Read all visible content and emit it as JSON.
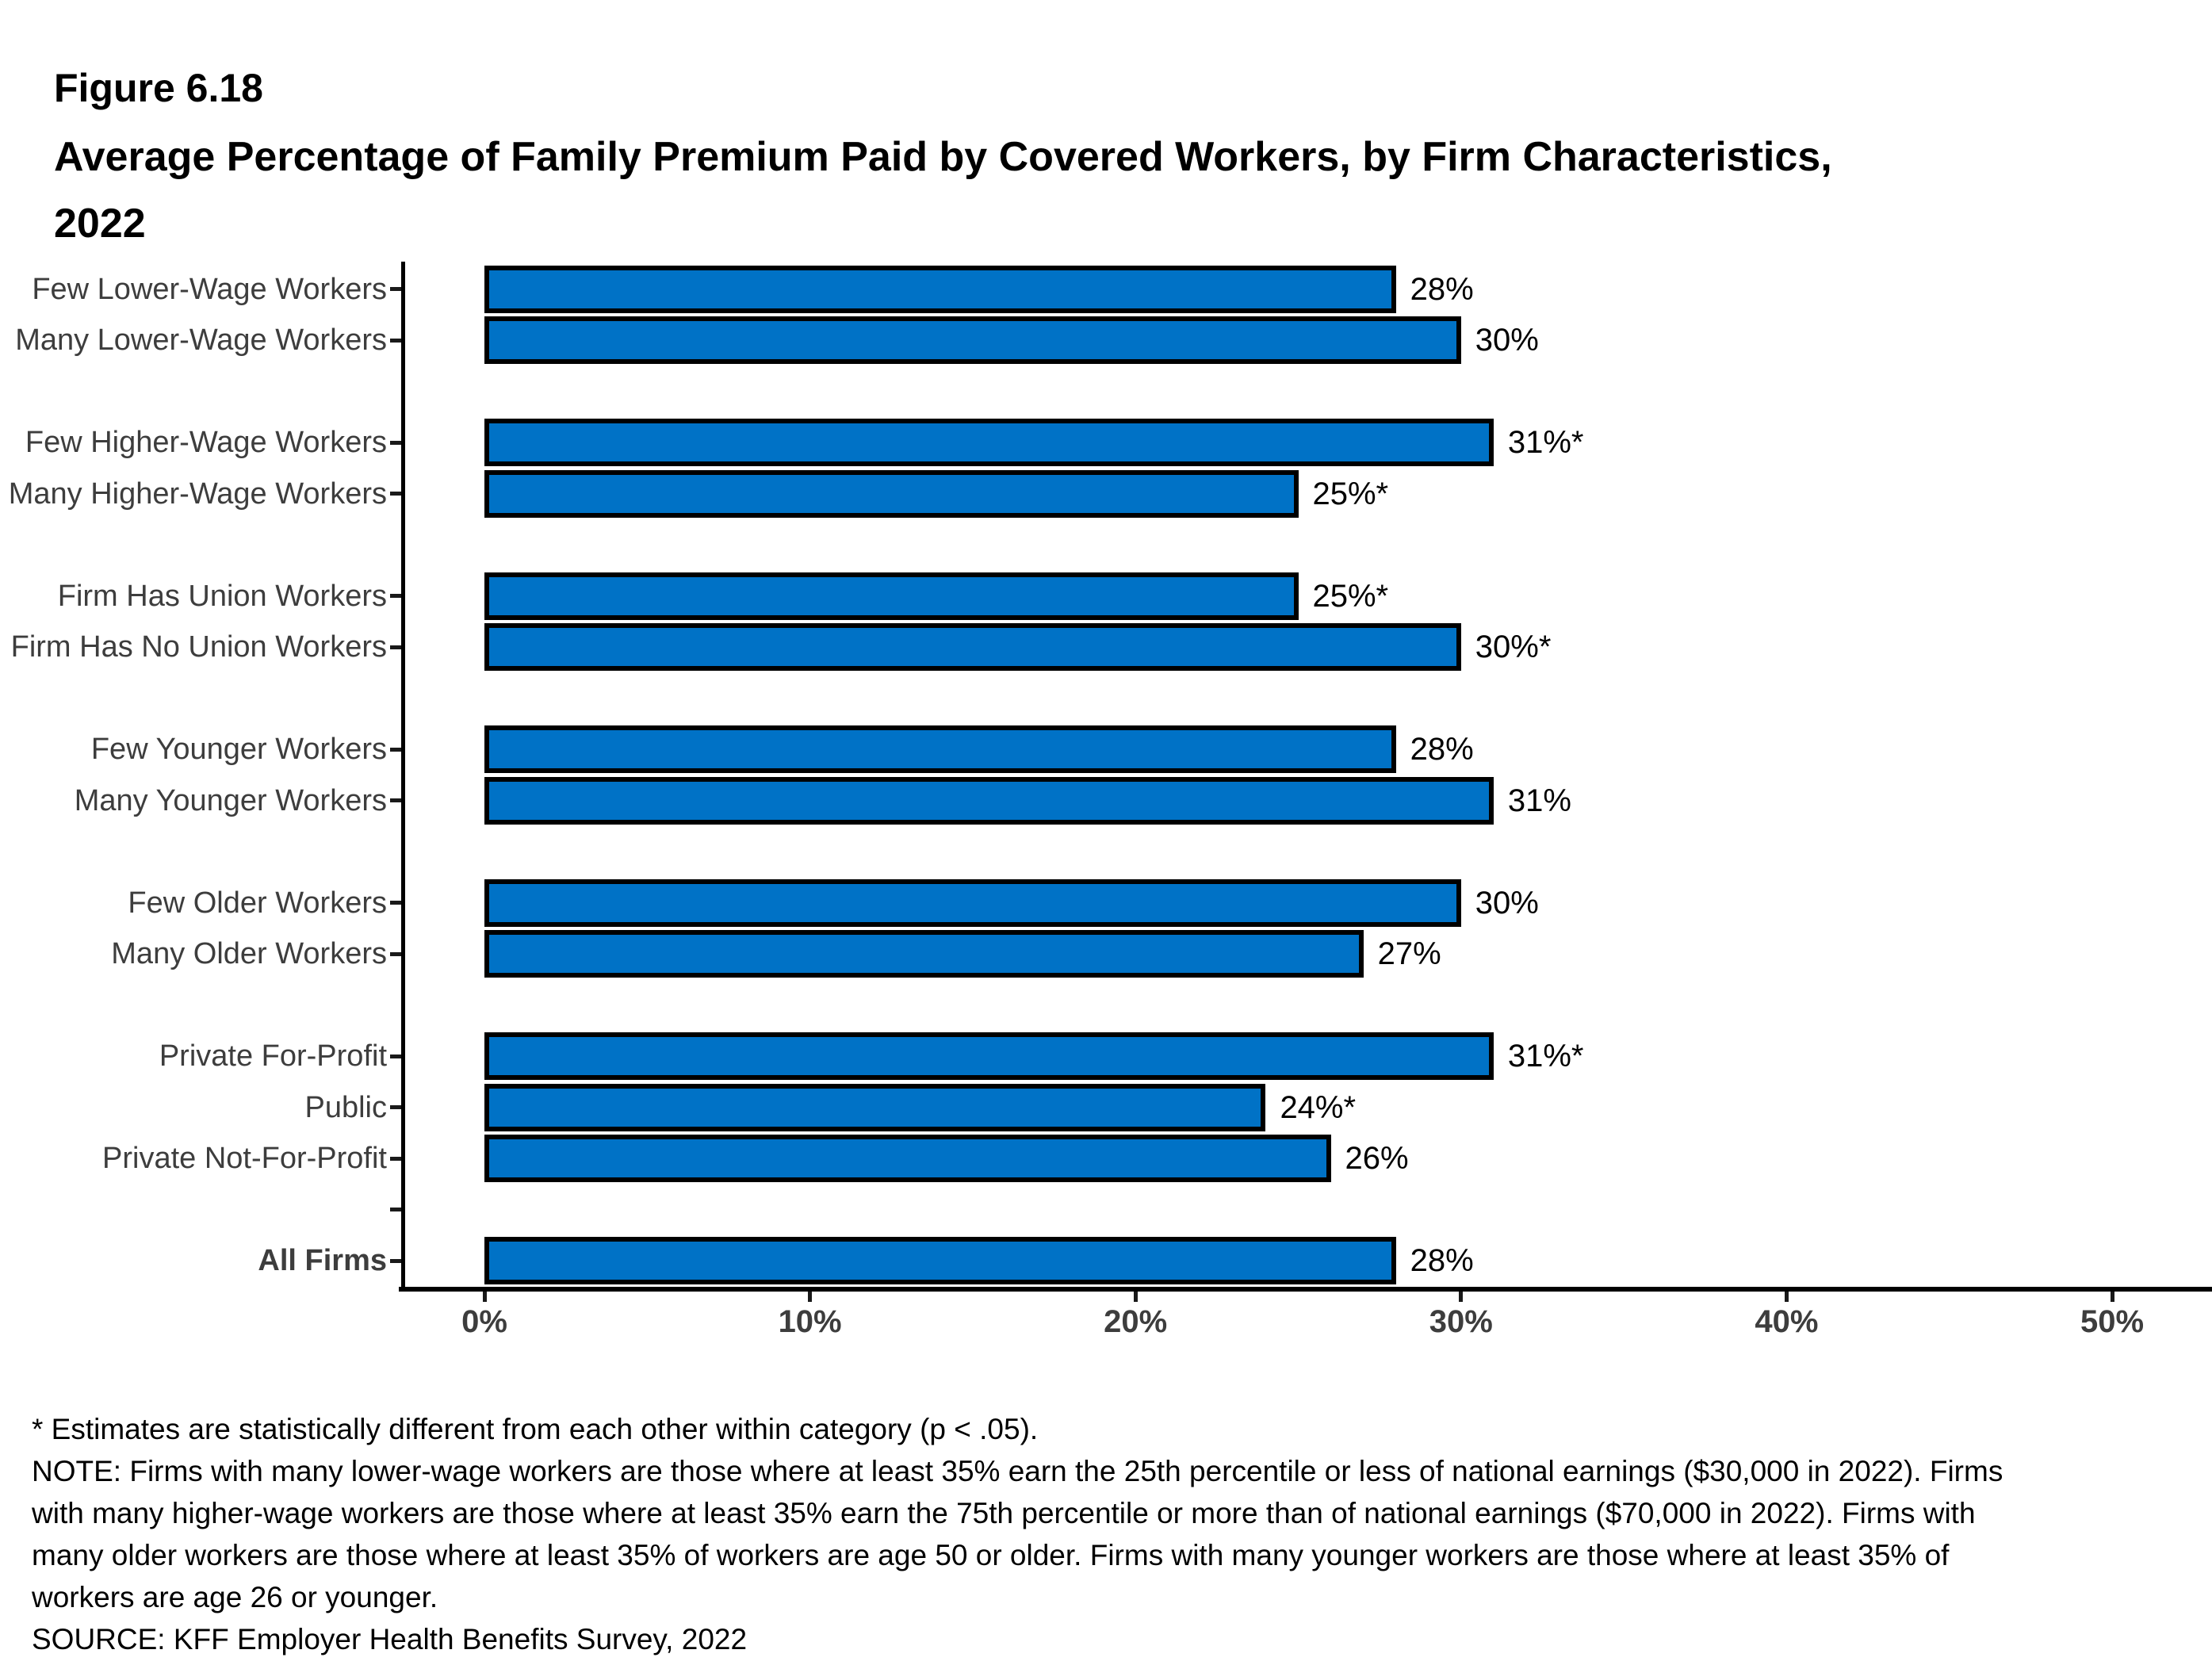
{
  "figure": {
    "label": "Figure 6.18",
    "title_line2": "Average Percentage of Family Premium Paid by Covered Workers, by Firm Characteristics,",
    "title_line3": "2022"
  },
  "chart_data": {
    "type": "bar",
    "orientation": "horizontal",
    "title": "Figure 6.18 — Average Percentage of Family Premium Paid by Covered Workers, by Firm Characteristics, 2022",
    "xlabel": "",
    "ylabel": "",
    "xlim": [
      0,
      50
    ],
    "x_tick_labels": [
      "0%",
      "10%",
      "20%",
      "30%",
      "40%",
      "50%"
    ],
    "x_tick_values": [
      0,
      10,
      20,
      30,
      40,
      50
    ],
    "grid": false,
    "legend": null,
    "bar_color": "#0072C6",
    "bar_border_color": "#000000",
    "rows": [
      {
        "label": "Few Lower-Wage Workers",
        "value": 28,
        "display": "28%",
        "slot": 1,
        "bold": false
      },
      {
        "label": "Many Lower-Wage Workers",
        "value": 30,
        "display": "30%",
        "slot": 2,
        "bold": false
      },
      {
        "label": "Few Higher-Wage Workers",
        "value": 31,
        "display": "31%*",
        "slot": 4,
        "bold": false
      },
      {
        "label": "Many Higher-Wage Workers",
        "value": 25,
        "display": "25%*",
        "slot": 5,
        "bold": false
      },
      {
        "label": "Firm Has Union Workers",
        "value": 25,
        "display": "25%*",
        "slot": 7,
        "bold": false
      },
      {
        "label": "Firm Has No Union Workers",
        "value": 30,
        "display": "30%*",
        "slot": 8,
        "bold": false
      },
      {
        "label": "Few Younger Workers",
        "value": 28,
        "display": "28%",
        "slot": 10,
        "bold": false
      },
      {
        "label": "Many Younger Workers",
        "value": 31,
        "display": "31%",
        "slot": 11,
        "bold": false
      },
      {
        "label": "Few Older Workers",
        "value": 30,
        "display": "30%",
        "slot": 13,
        "bold": false
      },
      {
        "label": "Many Older Workers",
        "value": 27,
        "display": "27%",
        "slot": 14,
        "bold": false
      },
      {
        "label": "Private For-Profit",
        "value": 31,
        "display": "31%*",
        "slot": 16,
        "bold": false
      },
      {
        "label": "Public",
        "value": 24,
        "display": "24%*",
        "slot": 17,
        "bold": false
      },
      {
        "label": "Private Not-For-Profit",
        "value": 26,
        "display": "26%",
        "slot": 18,
        "bold": false
      },
      {
        "label": "All Firms",
        "value": 28,
        "display": "28%",
        "slot": 20,
        "bold": true
      }
    ],
    "unlabeled_tick_slots": [
      19
    ]
  },
  "footnotes": {
    "lines": [
      "* Estimates are statistically different from each other within category (p < .05).",
      "NOTE: Firms with many lower-wage workers are those where at least 35% earn the 25th percentile or less of national earnings ($30,000 in 2022). Firms",
      "with many higher-wage workers are those where at least 35% earn the 75th percentile or more than of national earnings ($70,000 in 2022). Firms with",
      "many older workers are those where at least 35% of workers are age 50 or older. Firms with many younger workers are those where at least 35% of",
      "workers are age 26 or younger.",
      "SOURCE: KFF Employer Health Benefits Survey, 2022"
    ]
  }
}
